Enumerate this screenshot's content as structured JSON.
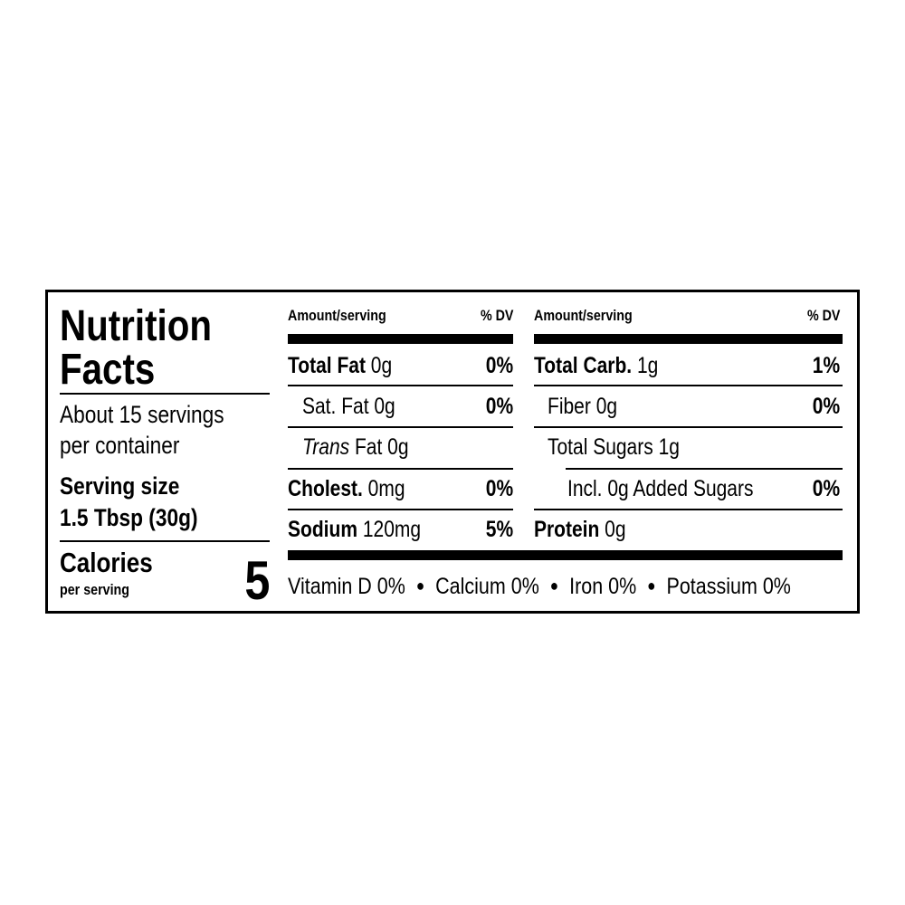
{
  "title_line1": "Nutrition",
  "title_line2": "Facts",
  "servings_line1": "About 15 servings",
  "servings_line2": "per container",
  "serving_size_label": "Serving size",
  "serving_size_value": "1.5 Tbsp (30g)",
  "calories_label": "Calories",
  "calories_sub": "per serving",
  "calories_value": "5",
  "left_table": {
    "header_amount": "Amount/serving",
    "header_dv": "% DV",
    "rows": [
      {
        "name": "Total Fat",
        "amount": "0g",
        "dv": "0%"
      },
      {
        "name": "Sat. Fat",
        "amount": "0g",
        "dv": "0%"
      },
      {
        "name": "Trans",
        "name_suffix": "Fat",
        "amount": "0g",
        "dv": ""
      },
      {
        "name": "Cholest.",
        "amount": "0mg",
        "dv": "0%"
      },
      {
        "name": "Sodium",
        "amount": "120mg",
        "dv": "5%"
      }
    ]
  },
  "right_table": {
    "header_amount": "Amount/serving",
    "header_dv": "% DV",
    "rows": [
      {
        "name": "Total Carb.",
        "amount": "1g",
        "dv": "1%"
      },
      {
        "name": "Fiber",
        "amount": "0g",
        "dv": "0%"
      },
      {
        "name": "Total Sugars",
        "amount": "1g",
        "dv": ""
      },
      {
        "name": "Incl. 0g Added Sugars",
        "amount": "",
        "dv": "0%"
      },
      {
        "name": "Protein",
        "amount": "0g",
        "dv": ""
      }
    ]
  },
  "vitamins": [
    "Vitamin D 0%",
    "Calcium 0%",
    "Iron 0%",
    "Potassium 0%"
  ],
  "bullet": "●"
}
